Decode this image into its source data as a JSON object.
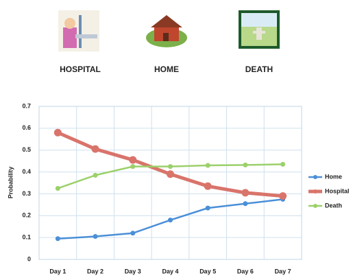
{
  "icons": [
    {
      "label": "HOSPITAL"
    },
    {
      "label": "HOME"
    },
    {
      "label": "DEATH"
    }
  ],
  "chart_data": {
    "type": "line",
    "y_label": "Probability",
    "categories": [
      "Day 1",
      "Day 2",
      "Day 3",
      "Day 4",
      "Day 5",
      "Day 6",
      "Day 7"
    ],
    "series": [
      {
        "name": "Home",
        "color": "#4a8fd8",
        "values": [
          0.095,
          0.105,
          0.12,
          0.18,
          0.235,
          0.255,
          0.275
        ]
      },
      {
        "name": "Hospital",
        "color": "#d9746b",
        "values": [
          0.58,
          0.505,
          0.455,
          0.39,
          0.335,
          0.305,
          0.29
        ]
      },
      {
        "name": "Death",
        "color": "#9bd06a",
        "values": [
          0.325,
          0.385,
          0.425,
          0.425,
          0.43,
          0.432,
          0.435
        ]
      }
    ],
    "ylim": [
      0,
      0.7
    ],
    "yticks": [
      0,
      0.1,
      0.2,
      0.3,
      0.4,
      0.5,
      0.6,
      0.7
    ],
    "grid": true,
    "legend": "right"
  }
}
